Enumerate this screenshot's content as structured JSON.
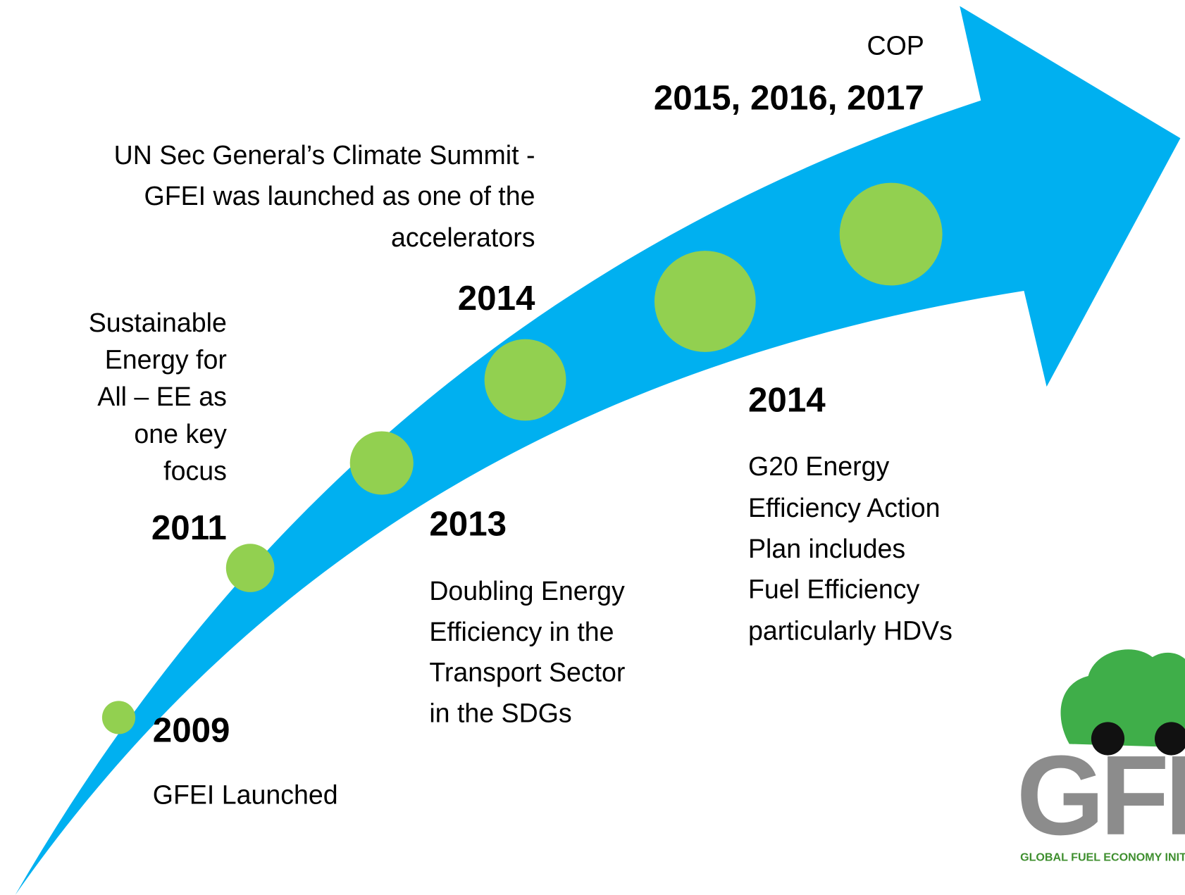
{
  "timeline": {
    "milestones": [
      {
        "year": "2009",
        "lines": [
          "GFEI Launched"
        ]
      },
      {
        "year": "2011",
        "lines": [
          "Sustainable",
          "Energy for",
          "All – EE as",
          "one key",
          "focus"
        ]
      },
      {
        "year": "2013",
        "lines": [
          "Doubling Energy",
          "Efficiency in the",
          "Transport Sector",
          "in the SDGs"
        ]
      },
      {
        "year": "2014",
        "lines": [
          "UN Sec General’s Climate Summit -",
          "GFEI was launched as one of the",
          "accelerators"
        ]
      },
      {
        "year": "2014",
        "lines": [
          "G20 Energy",
          "Efficiency Action",
          "Plan includes",
          "Fuel Efficiency",
          "particularly HDVs"
        ]
      },
      {
        "year": "2015, 2016, 2017",
        "lines": [
          "COP"
        ]
      }
    ]
  },
  "logo": {
    "mark": "GFEI",
    "caption": "GLOBAL FUEL ECONOMY INITIATIVE"
  }
}
